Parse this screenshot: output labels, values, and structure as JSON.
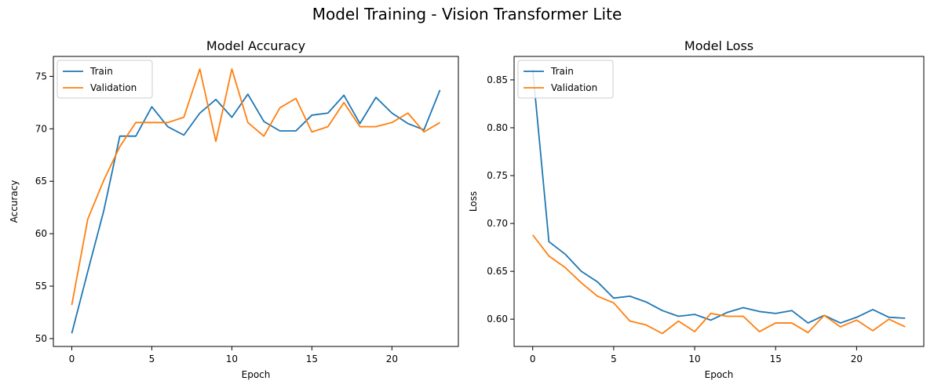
{
  "figure": {
    "title": "Model Training - Vision Transformer Lite"
  },
  "chart_data": [
    {
      "type": "line",
      "title": "Model Accuracy",
      "xlabel": "Epoch",
      "ylabel": "Accuracy",
      "xlim": [
        -1.15,
        24.15
      ],
      "ylim": [
        49.25,
        76.9
      ],
      "xticks": [
        0,
        5,
        10,
        15,
        20
      ],
      "yticks": [
        50,
        55,
        60,
        65,
        70,
        75
      ],
      "grid": false,
      "legend_placement": "upper left",
      "x": [
        0,
        1,
        2,
        3,
        4,
        5,
        6,
        7,
        8,
        9,
        10,
        11,
        12,
        13,
        14,
        15,
        16,
        17,
        18,
        19,
        20,
        21,
        22,
        23
      ],
      "series": [
        {
          "name": "Train",
          "color": "#1f77b4",
          "values": [
            50.5,
            56.4,
            62.2,
            69.3,
            69.3,
            72.1,
            70.2,
            69.4,
            71.5,
            72.8,
            71.1,
            73.3,
            70.7,
            69.8,
            69.8,
            71.3,
            71.5,
            73.2,
            70.5,
            73.0,
            71.5,
            70.5,
            69.9,
            73.7
          ]
        },
        {
          "name": "Validation",
          "color": "#ff7f0e",
          "values": [
            53.2,
            61.4,
            65.1,
            68.3,
            70.6,
            70.6,
            70.6,
            71.1,
            75.7,
            68.8,
            75.7,
            70.6,
            69.3,
            72.0,
            72.9,
            69.7,
            70.2,
            72.5,
            70.2,
            70.2,
            70.6,
            71.5,
            69.7,
            70.6
          ]
        }
      ]
    },
    {
      "type": "line",
      "title": "Model Loss",
      "xlabel": "Epoch",
      "ylabel": "Loss",
      "xlim": [
        -1.15,
        24.15
      ],
      "ylim": [
        0.5715,
        0.8745
      ],
      "xticks": [
        0,
        5,
        10,
        15,
        20
      ],
      "yticks": [
        0.6,
        0.65,
        0.7,
        0.75,
        0.8,
        0.85
      ],
      "ytick_labels": [
        "0.60",
        "0.65",
        "0.70",
        "0.75",
        "0.80",
        "0.85"
      ],
      "grid": false,
      "legend_placement": "upper left",
      "x": [
        0,
        1,
        2,
        3,
        4,
        5,
        6,
        7,
        8,
        9,
        10,
        11,
        12,
        13,
        14,
        15,
        16,
        17,
        18,
        19,
        20,
        21,
        22,
        23
      ],
      "series": [
        {
          "name": "Train",
          "color": "#1f77b4",
          "values": [
            0.861,
            0.681,
            0.668,
            0.65,
            0.639,
            0.622,
            0.624,
            0.618,
            0.609,
            0.603,
            0.605,
            0.599,
            0.607,
            0.612,
            0.608,
            0.606,
            0.609,
            0.596,
            0.604,
            0.596,
            0.602,
            0.61,
            0.602,
            0.601
          ]
        },
        {
          "name": "Validation",
          "color": "#ff7f0e",
          "values": [
            0.688,
            0.666,
            0.654,
            0.638,
            0.624,
            0.617,
            0.598,
            0.594,
            0.585,
            0.598,
            0.587,
            0.606,
            0.603,
            0.603,
            0.587,
            0.596,
            0.596,
            0.586,
            0.604,
            0.592,
            0.599,
            0.588,
            0.6,
            0.592
          ]
        }
      ]
    }
  ]
}
